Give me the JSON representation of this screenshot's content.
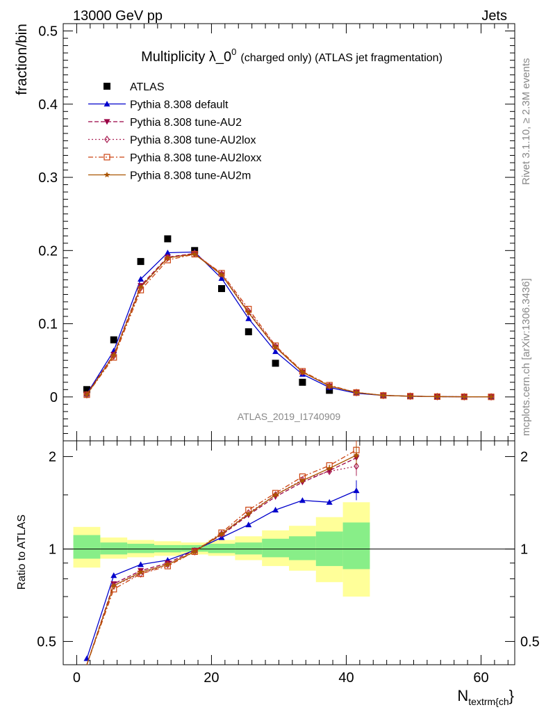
{
  "header": {
    "left": "13000 GeV pp",
    "right": "Jets"
  },
  "side_labels": {
    "rivet": "Rivet 3.1.10, ≥ 2.3M events",
    "mcplots": "mcplots.cern.ch [arXiv:1306.3436]"
  },
  "watermark": "ATLAS_2019_I1740909",
  "chart_data": [
    {
      "type": "line",
      "title": "Multiplicity λ_0",
      "title_sup": "0",
      "title_suffix": "(charged only) (ATLAS jet fragmentation)",
      "ylabel": "fraction/bin",
      "xlim": [
        -2,
        65
      ],
      "ylim": [
        -0.06,
        0.51
      ],
      "yticks": [
        0,
        0.1,
        0.2,
        0.3,
        0.4,
        0.5
      ],
      "ytick_labels": [
        "0",
        "0.1",
        "0.2",
        "0.3",
        "0.4",
        "0.5"
      ],
      "legend_position": "top-left",
      "x": [
        1.5,
        5.5,
        9.5,
        13.5,
        17.5,
        21.5,
        25.5,
        29.5,
        33.5,
        37.5,
        41.5,
        45.5,
        49.5,
        53.5,
        57.5,
        61.5
      ],
      "series": [
        {
          "name": "ATLAS",
          "color": "#000000",
          "marker": "square",
          "style": "none",
          "values": [
            0.01,
            0.078,
            0.185,
            0.216,
            0.2,
            0.148,
            0.089,
            0.046,
            0.02,
            0.009,
            null,
            null,
            null,
            null,
            null,
            null
          ]
        },
        {
          "name": "Pythia 8.308 default",
          "color": "#0000cc",
          "marker": "triangle-up",
          "style": "solid",
          "values": [
            0.004,
            0.063,
            0.161,
            0.197,
            0.198,
            0.162,
            0.107,
            0.062,
            0.031,
            0.013,
            0.005,
            0.002,
            0.001,
            0.0004,
            0.0002,
            0.0001
          ]
        },
        {
          "name": "Pythia 8.308 tune-AU2",
          "color": "#990044",
          "marker": "triangle-down",
          "style": "dashed",
          "values": [
            0.004,
            0.058,
            0.152,
            0.191,
            0.196,
            0.167,
            0.115,
            0.068,
            0.034,
            0.015,
            0.006,
            0.002,
            0.001,
            0.0004,
            0.0002,
            0.0001
          ]
        },
        {
          "name": "Pythia 8.308 tune-AU2lox",
          "color": "#aa2255",
          "marker": "diamond-open",
          "style": "dotted",
          "values": [
            0.003,
            0.056,
            0.149,
            0.19,
            0.196,
            0.168,
            0.117,
            0.069,
            0.034,
            0.015,
            0.006,
            0.002,
            0.001,
            0.0004,
            0.0002,
            0.0001
          ]
        },
        {
          "name": "Pythia 8.308 tune-AU2loxx",
          "color": "#cc4411",
          "marker": "square-open",
          "style": "dashdot",
          "values": [
            0.003,
            0.054,
            0.146,
            0.187,
            0.195,
            0.169,
            0.12,
            0.07,
            0.035,
            0.016,
            0.006,
            0.002,
            0.001,
            0.0004,
            0.0002,
            0.0001
          ]
        },
        {
          "name": "Pythia 8.308 tune-AU2m",
          "color": "#aa5500",
          "marker": "star",
          "style": "solid",
          "values": [
            0.003,
            0.057,
            0.15,
            0.19,
            0.195,
            0.167,
            0.115,
            0.068,
            0.034,
            0.015,
            0.006,
            0.002,
            0.001,
            0.0004,
            0.0002,
            0.0001
          ]
        }
      ]
    },
    {
      "type": "line",
      "ylabel": "Ratio to ATLAS",
      "xlabel": "N",
      "xlabel_sub": "textrm{ch",
      "xlabel_suffix": "}",
      "xlim": [
        -2,
        65
      ],
      "ylim": [
        0.42,
        2.25
      ],
      "ylog": true,
      "yticks": [
        0.5,
        1,
        2
      ],
      "ytick_labels": [
        "0.5",
        "1",
        "2"
      ],
      "xticks": [
        0,
        20,
        40,
        60
      ],
      "xtick_labels": [
        "0",
        "20",
        "40",
        "60"
      ],
      "bands": {
        "edges": [
          -0.5,
          3.5,
          7.5,
          11.5,
          15.5,
          19.5,
          23.5,
          27.5,
          31.5,
          35.5,
          39.5,
          43.5
        ],
        "yellow": [
          [
            0.87,
            1.18
          ],
          [
            0.93,
            1.09
          ],
          [
            0.94,
            1.07
          ],
          [
            0.95,
            1.06
          ],
          [
            0.96,
            1.05
          ],
          [
            0.95,
            1.07
          ],
          [
            0.92,
            1.1
          ],
          [
            0.88,
            1.15
          ],
          [
            0.85,
            1.19
          ],
          [
            0.78,
            1.27
          ],
          [
            0.7,
            1.42
          ]
        ],
        "green": [
          [
            0.93,
            1.11
          ],
          [
            0.96,
            1.05
          ],
          [
            0.97,
            1.04
          ],
          [
            0.975,
            1.03
          ],
          [
            0.98,
            1.03
          ],
          [
            0.97,
            1.04
          ],
          [
            0.96,
            1.05
          ],
          [
            0.94,
            1.08
          ],
          [
            0.92,
            1.1
          ],
          [
            0.88,
            1.14
          ],
          [
            0.86,
            1.22
          ]
        ],
        "yellow_color": "#ffff99",
        "green_color": "#88ee88"
      },
      "x": [
        1.5,
        5.5,
        9.5,
        13.5,
        17.5,
        21.5,
        25.5,
        29.5,
        33.5,
        37.5,
        41.5
      ],
      "series": [
        {
          "name": "Pythia 8.308 default",
          "color": "#0000cc",
          "marker": "triangle-up",
          "style": "solid",
          "values": [
            0.44,
            0.82,
            0.89,
            0.92,
            0.99,
            1.09,
            1.2,
            1.34,
            1.44,
            1.42,
            1.55
          ]
        },
        {
          "name": "Pythia 8.308 tune-AU2",
          "color": "#990044",
          "marker": "triangle-down",
          "style": "dashed",
          "values": [
            0.39,
            0.77,
            0.85,
            0.9,
            0.99,
            1.11,
            1.29,
            1.48,
            1.65,
            1.8,
            1.98
          ]
        },
        {
          "name": "Pythia 8.308 tune-AU2lox",
          "color": "#aa2255",
          "marker": "diamond-open",
          "style": "dotted",
          "values": [
            0.37,
            0.76,
            0.83,
            0.89,
            0.98,
            1.12,
            1.31,
            1.5,
            1.68,
            1.79,
            1.86
          ]
        },
        {
          "name": "Pythia 8.308 tune-AU2loxx",
          "color": "#cc4411",
          "marker": "square-open",
          "style": "dashdot",
          "values": [
            0.35,
            0.74,
            0.83,
            0.88,
            0.98,
            1.13,
            1.34,
            1.52,
            1.72,
            1.87,
            2.1
          ]
        },
        {
          "name": "Pythia 8.308 tune-AU2m",
          "color": "#aa5500",
          "marker": "star",
          "style": "solid",
          "values": [
            0.36,
            0.76,
            0.84,
            0.89,
            0.98,
            1.12,
            1.3,
            1.5,
            1.67,
            1.83,
            2.02
          ]
        }
      ]
    }
  ]
}
